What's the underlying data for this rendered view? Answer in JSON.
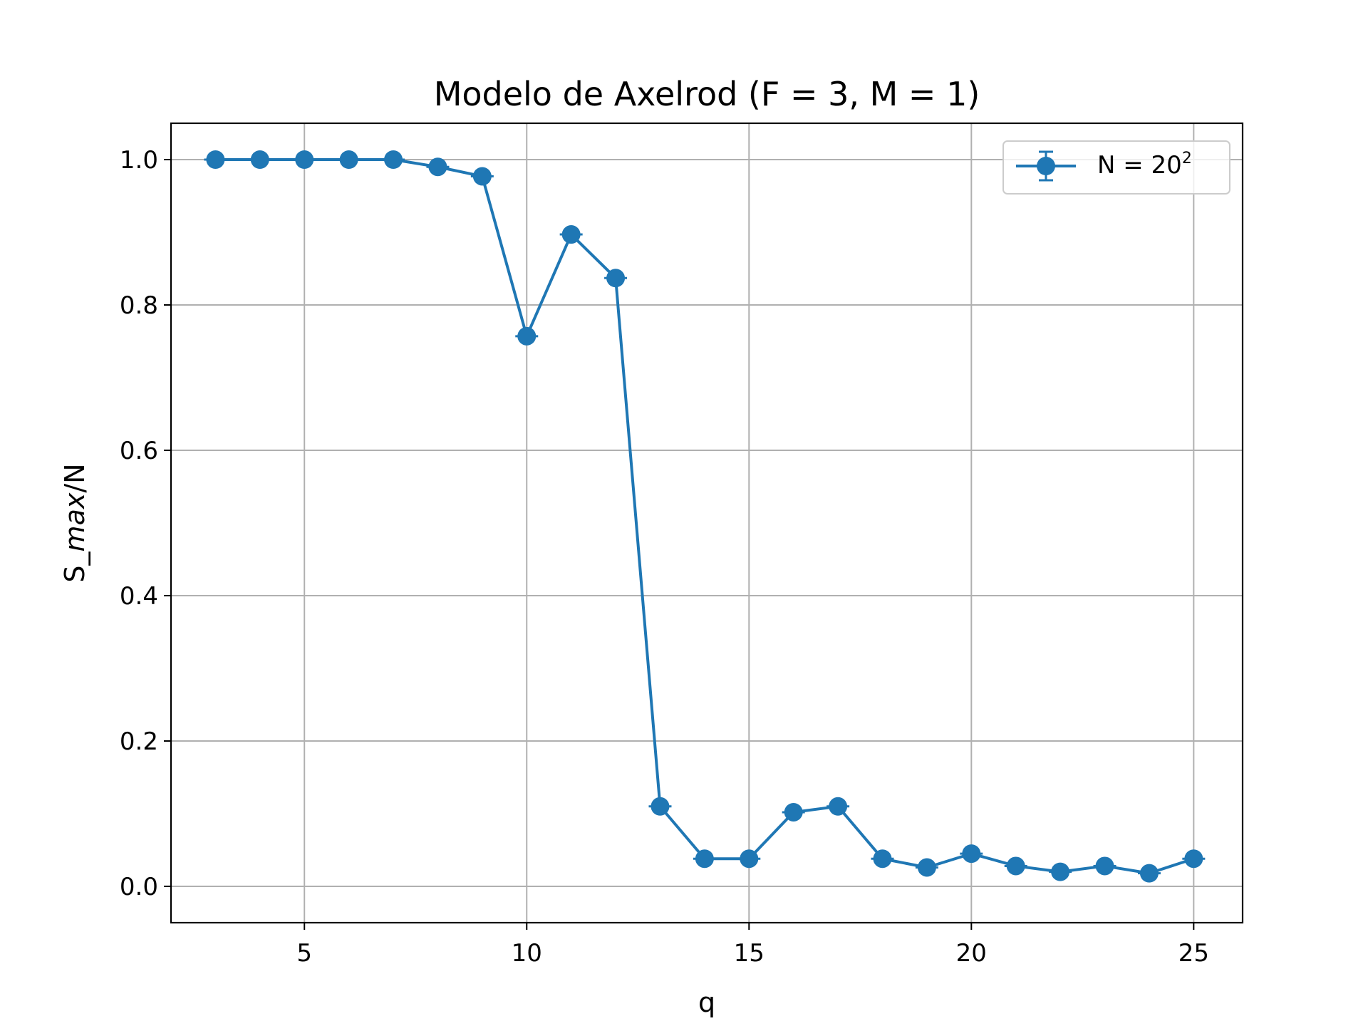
{
  "chart_data": {
    "type": "line",
    "title": "Modelo de Axelrod (F = 3, M = 1)",
    "xlabel": "q",
    "ylabel_prefix": "S_",
    "ylabel_italic": "max",
    "ylabel_suffix": "/N",
    "xlim": [
      2,
      26.1
    ],
    "ylim": [
      -0.05,
      1.05
    ],
    "xticks": [
      5,
      10,
      15,
      20,
      25
    ],
    "xtick_labels": [
      "5",
      "10",
      "15",
      "20",
      "25"
    ],
    "yticks": [
      0.0,
      0.2,
      0.4,
      0.6,
      0.8,
      1.0
    ],
    "ytick_labels": [
      "0.0",
      "0.2",
      "0.4",
      "0.6",
      "0.8",
      "1.0"
    ],
    "grid": true,
    "legend_position": "upper right",
    "series": [
      {
        "name": "N = 20",
        "name_superscript": "2",
        "color": "#1f77b4",
        "marker": "circle",
        "error_bars": true,
        "x": [
          3,
          4,
          5,
          6,
          7,
          8,
          9,
          10,
          11,
          12,
          13,
          14,
          15,
          16,
          17,
          18,
          19,
          20,
          21,
          22,
          23,
          24,
          25
        ],
        "y": [
          1.0,
          1.0,
          1.0,
          1.0,
          1.0,
          0.99,
          0.977,
          0.757,
          0.897,
          0.837,
          0.11,
          0.038,
          0.038,
          0.102,
          0.11,
          0.038,
          0.026,
          0.045,
          0.028,
          0.02,
          0.028,
          0.018,
          0.038
        ]
      }
    ]
  }
}
